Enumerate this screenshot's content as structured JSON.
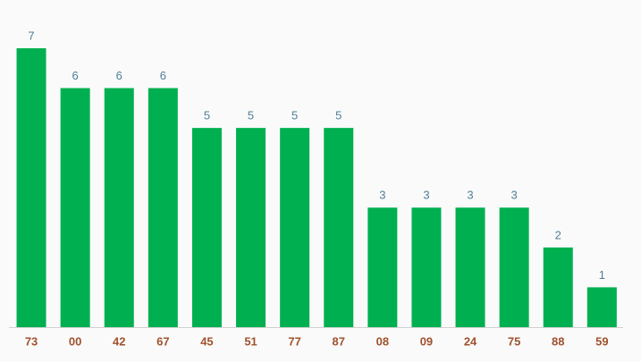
{
  "chart_data": {
    "type": "bar",
    "categories": [
      "73",
      "00",
      "42",
      "67",
      "45",
      "51",
      "77",
      "87",
      "08",
      "09",
      "24",
      "75",
      "88",
      "59"
    ],
    "values": [
      7,
      6,
      6,
      6,
      5,
      5,
      5,
      5,
      3,
      3,
      3,
      3,
      2,
      1
    ],
    "color": "#00b050"
  }
}
